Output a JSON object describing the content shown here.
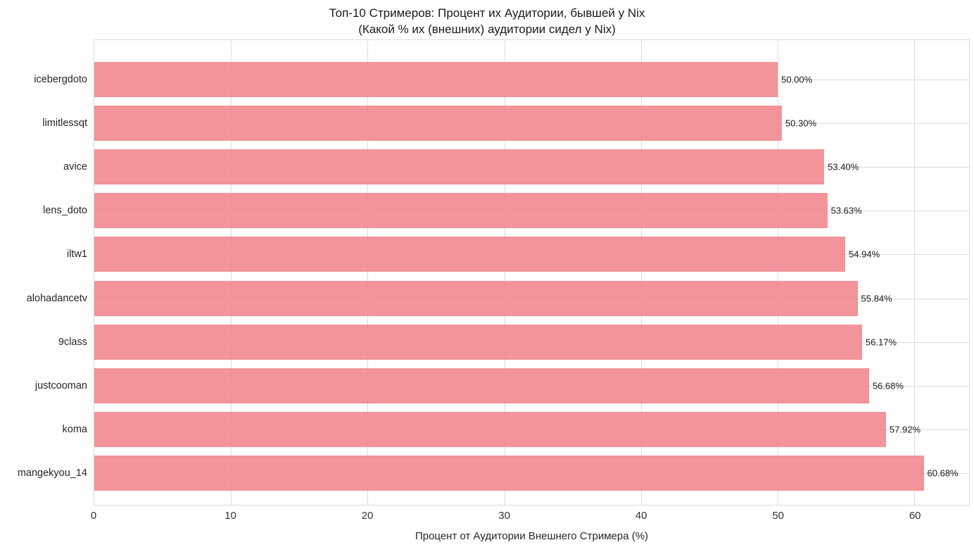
{
  "title": {
    "line1": "Топ-10 Стримеров: Процент их Аудитории, бывшей у Nix",
    "line2": "(Какой % их (внешних) аудитории сидел у Nix)"
  },
  "chart_data": {
    "type": "bar",
    "orientation": "horizontal",
    "title": "Топ-10 Стримеров: Процент их Аудитории, бывшей у Nix (Какой % их (внешних) аудитории сидел у Nix)",
    "categories": [
      "icebergdoto",
      "limitlessqt",
      "avice",
      "lens_doto",
      "iltw1",
      "alohadancetv",
      "9class",
      "justcooman",
      "koma",
      "mangekyou_14"
    ],
    "values": [
      50.0,
      50.3,
      53.4,
      53.63,
      54.94,
      55.84,
      56.17,
      56.68,
      57.92,
      60.68
    ],
    "value_labels": [
      "50.00%",
      "50.30%",
      "53.40%",
      "53.63%",
      "54.94%",
      "55.84%",
      "56.17%",
      "56.68%",
      "57.92%",
      "60.68%"
    ],
    "xlabel": "Процент от Аудитории Внешнего Стримера (%)",
    "ylabel": "",
    "xlim": [
      0,
      64
    ],
    "xticks": [
      0,
      10,
      20,
      30,
      40,
      50,
      60
    ],
    "grid": true,
    "legend": null,
    "colors": {
      "bar": "#F08085",
      "bar_opacity": 0.84,
      "grid": "#DCDCDC",
      "spine": "#D9D9D9",
      "text": "#262626",
      "value_text": "#1A1A1A",
      "background": "#FFFFFF"
    }
  }
}
